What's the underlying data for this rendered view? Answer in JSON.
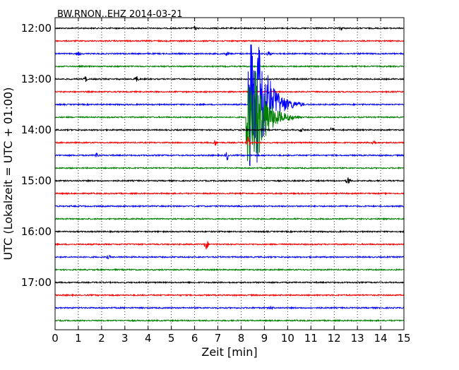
{
  "chart_data": {
    "type": "line",
    "title": "BW.RNON..EHZ 2014-03-21",
    "xlabel": "Zeit  [min]",
    "ylabel": "UTC (Lokalzeit = UTC + 01:00)",
    "xlim": [
      0,
      15
    ],
    "x_ticks": [
      "0",
      "1",
      "2",
      "3",
      "4",
      "5",
      "6",
      "7",
      "8",
      "9",
      "10",
      "11",
      "12",
      "13",
      "14",
      "15"
    ],
    "y_ticks": [
      {
        "label": "12:00",
        "trace": 0
      },
      {
        "label": "13:00",
        "trace": 4
      },
      {
        "label": "14:00",
        "trace": 8
      },
      {
        "label": "15:00",
        "trace": 12
      },
      {
        "label": "16:00",
        "trace": 16
      },
      {
        "label": "17:00",
        "trace": 20
      }
    ],
    "grid_x": "dotted",
    "colors": [
      "#000000",
      "#ff0000",
      "#0000ff",
      "#008000"
    ],
    "trace_start_times": [
      "12:00",
      "12:15",
      "12:30",
      "12:45",
      "13:00",
      "13:15",
      "13:30",
      "13:45",
      "14:00",
      "14:15",
      "14:30",
      "14:45",
      "15:00",
      "15:15",
      "15:30",
      "15:45",
      "16:00",
      "16:15",
      "16:30",
      "16:45",
      "17:00",
      "17:15",
      "17:30",
      "17:45"
    ],
    "events": [
      {
        "trace": 0,
        "x": 6.0,
        "amp": 0.12
      },
      {
        "trace": 0,
        "x": 12.3,
        "amp": 0.12
      },
      {
        "trace": 2,
        "x": 1.0,
        "amp": 0.12
      },
      {
        "trace": 2,
        "x": 7.4,
        "amp": 0.12
      },
      {
        "trace": 2,
        "x": 9.2,
        "amp": 0.18
      },
      {
        "trace": 4,
        "x": 1.3,
        "amp": 0.2
      },
      {
        "trace": 4,
        "x": 3.5,
        "amp": 0.2
      },
      {
        "trace": 6,
        "x": 8.3,
        "amp": 2.0,
        "type": "quake"
      },
      {
        "trace": 7,
        "x": 8.2,
        "amp": 1.4,
        "type": "quake"
      },
      {
        "trace": 8,
        "x": 10.6,
        "amp": 0.12
      },
      {
        "trace": 8,
        "x": 11.9,
        "amp": 0.2
      },
      {
        "trace": 9,
        "x": 6.9,
        "amp": 0.22
      },
      {
        "trace": 9,
        "x": 8.3,
        "amp": 0.4
      },
      {
        "trace": 9,
        "x": 13.7,
        "amp": 0.22
      },
      {
        "trace": 10,
        "x": 1.8,
        "amp": 0.2
      },
      {
        "trace": 10,
        "x": 7.4,
        "amp": 0.35
      },
      {
        "trace": 12,
        "x": 12.6,
        "amp": 0.3
      },
      {
        "trace": 17,
        "x": 6.5,
        "amp": 0.4
      },
      {
        "trace": 18,
        "x": 2.3,
        "amp": 0.12
      },
      {
        "trace": 22,
        "x": 9.3,
        "amp": 0.12
      }
    ]
  }
}
